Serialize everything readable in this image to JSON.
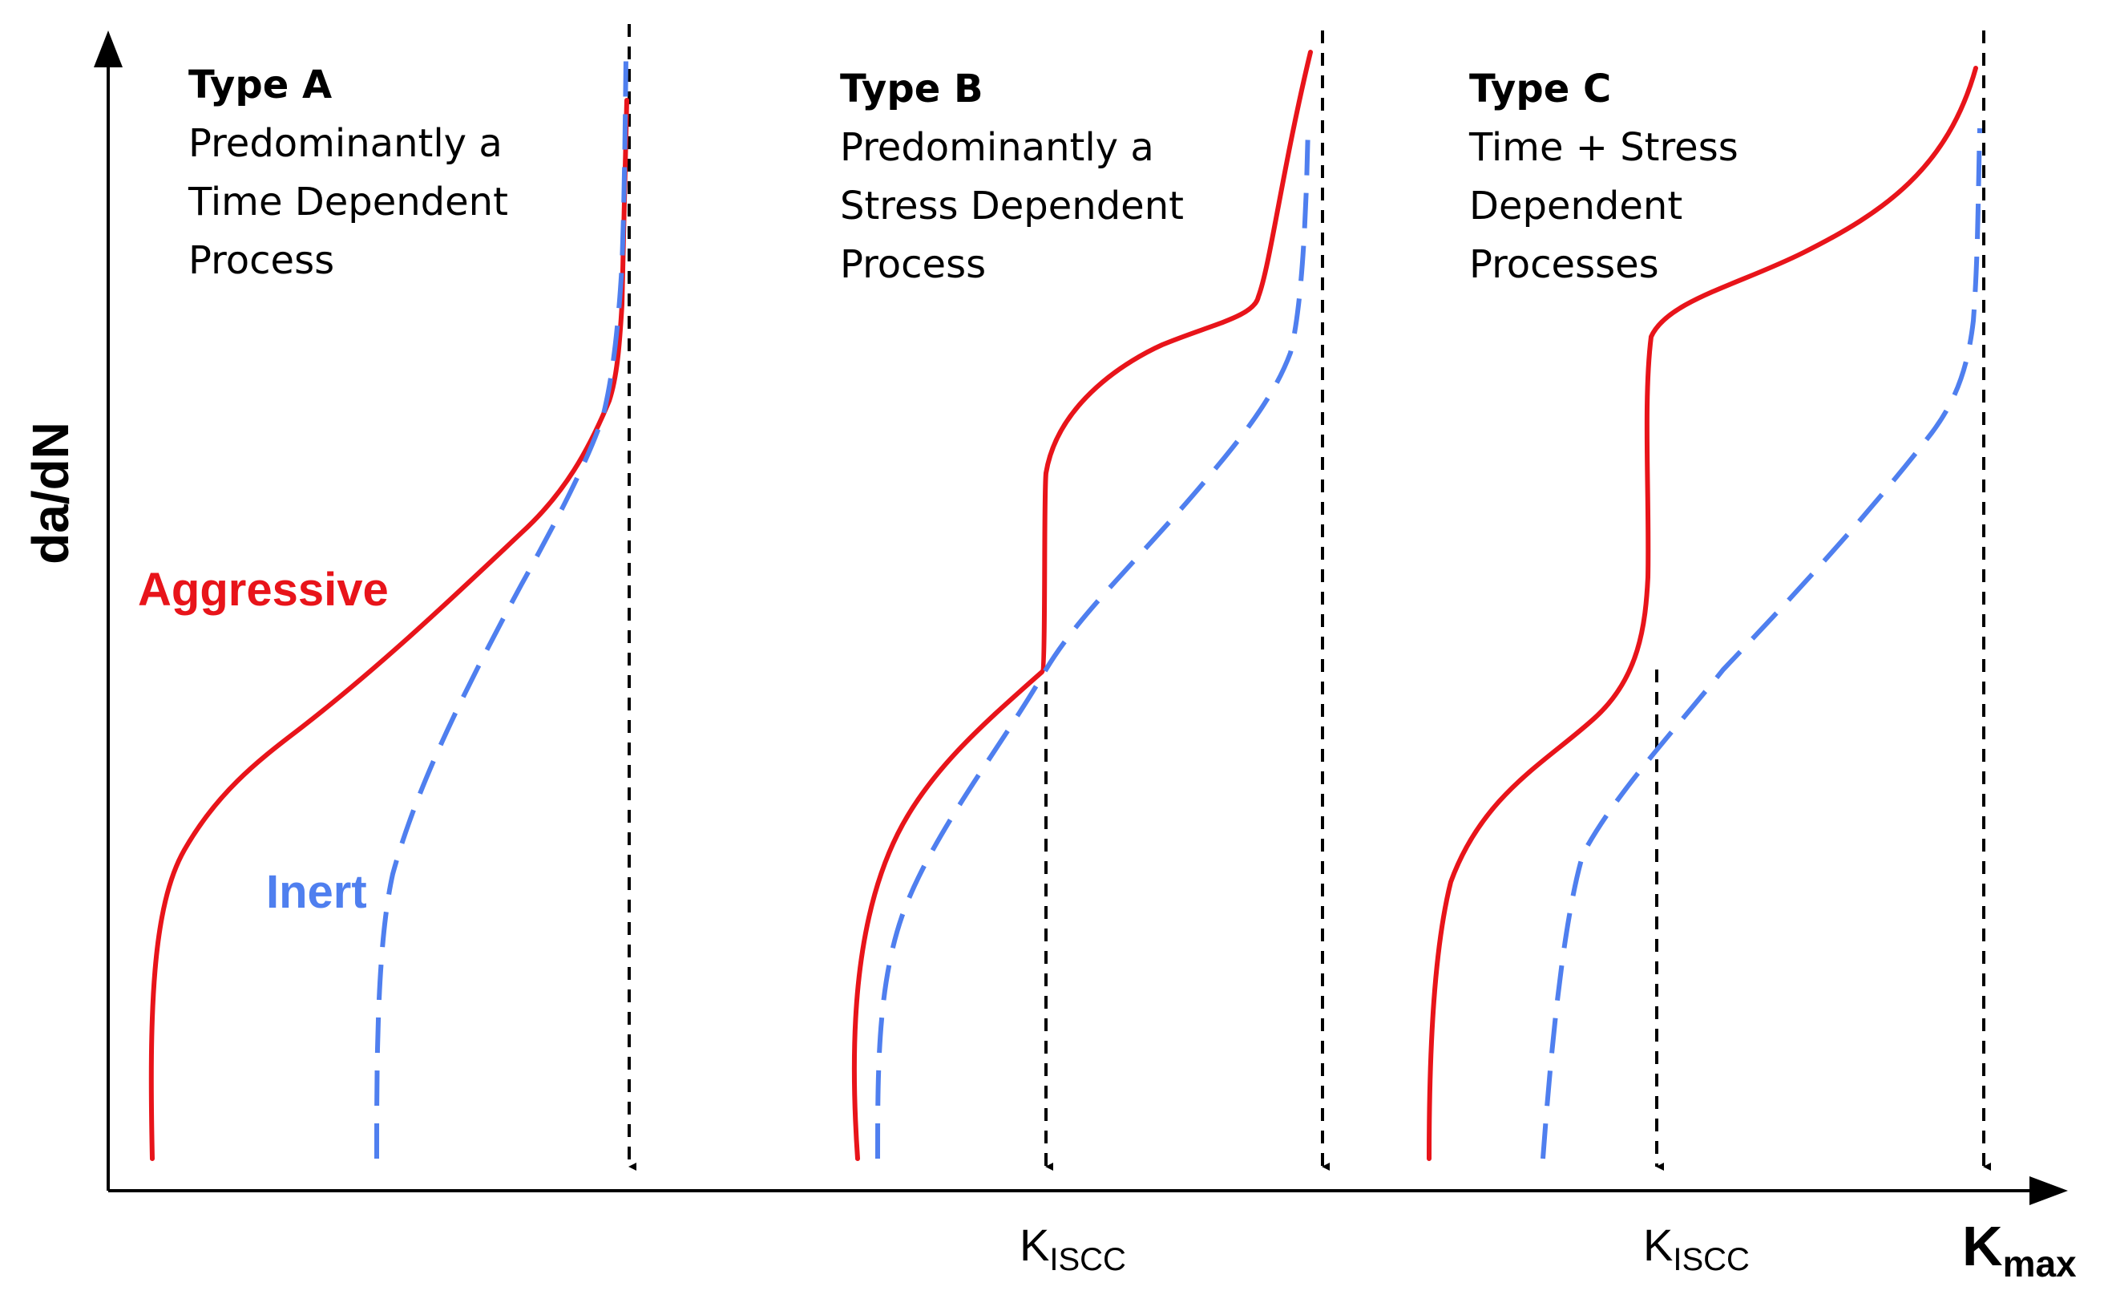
{
  "y_axis_label": "da/dN",
  "x_axis_label": {
    "main": "K",
    "sub": "max"
  },
  "kiscc_label": {
    "main": "K",
    "sub": "ISCC"
  },
  "series_labels": {
    "aggressive": "Aggressive",
    "inert": "Inert"
  },
  "colors": {
    "aggressive": "#e8141a",
    "inert": "#4f7fef",
    "axis": "#000000"
  },
  "panels": [
    {
      "title": "Type A",
      "lines": [
        "Predominantly a",
        "Time Dependent",
        "Process"
      ]
    },
    {
      "title": "Type B",
      "lines": [
        "Predominantly a",
        "Stress Dependent",
        "Process"
      ]
    },
    {
      "title": "Type C",
      "lines": [
        "Time + Stress",
        "Dependent",
        "Processes"
      ]
    }
  ],
  "markers": [
    {
      "panel": "Type A",
      "label": ""
    },
    {
      "panel": "Type B",
      "label": "K_ISCC"
    },
    {
      "panel": "Type B",
      "label": ""
    },
    {
      "panel": "Type C",
      "label": "K_ISCC"
    },
    {
      "panel": "Type C",
      "label": "K_max"
    }
  ]
}
